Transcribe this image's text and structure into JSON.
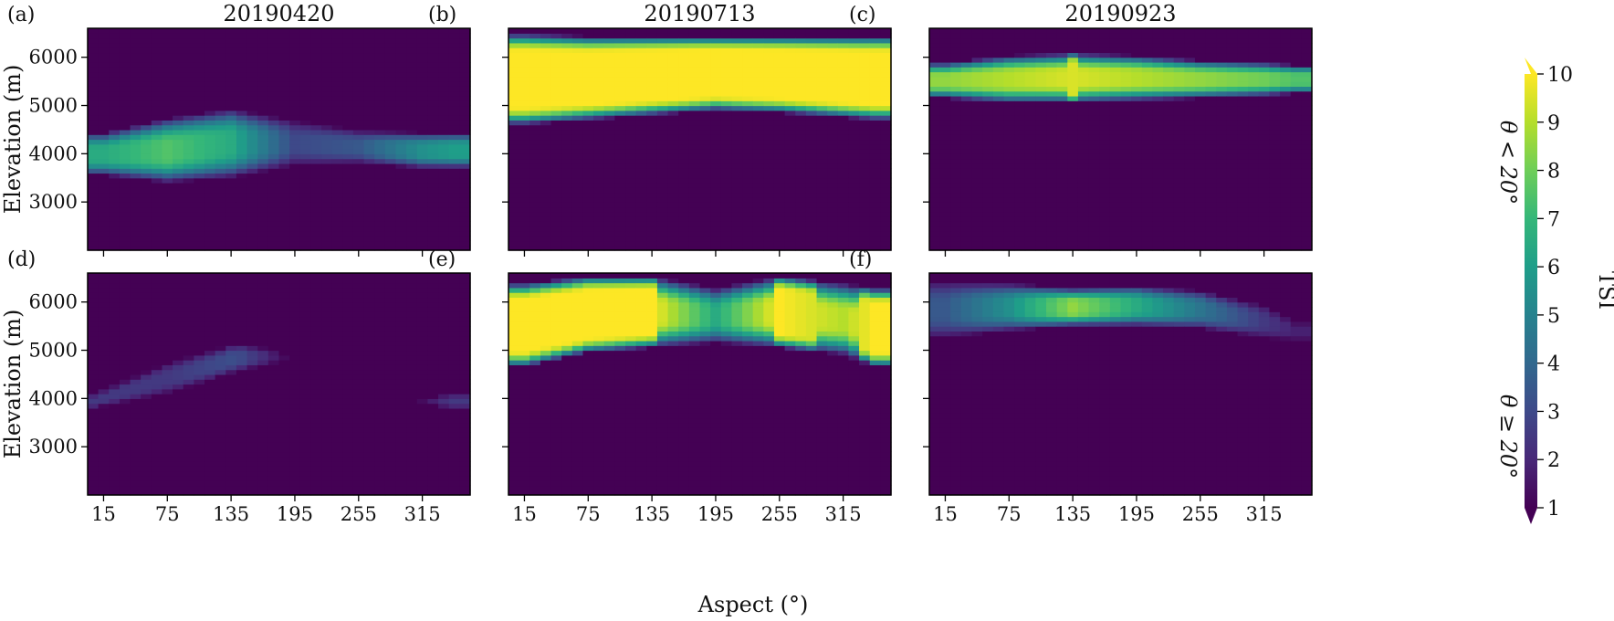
{
  "chart_data": {
    "type": "heatmap",
    "colormap": "viridis",
    "colorbar": {
      "label": "TSI",
      "min": 1,
      "max": 10,
      "ticks": [
        "1",
        "2",
        "3",
        "4",
        "5",
        "6",
        "7",
        "8",
        "9",
        "10"
      ],
      "extend": "both"
    },
    "xlabel": "Aspect (°)",
    "ylabel": "Elevation (m)",
    "xlim": [
      0,
      360
    ],
    "ylim": [
      2000,
      6600
    ],
    "xticks": [
      "15",
      "75",
      "135",
      "195",
      "255",
      "315"
    ],
    "xtick_values": [
      15,
      75,
      135,
      195,
      255,
      315
    ],
    "yticks": [
      "3000",
      "4000",
      "5000",
      "6000"
    ],
    "ytick_values": [
      3000,
      4000,
      5000,
      6000
    ],
    "columns": [
      "20190420",
      "20190713",
      "20190923"
    ],
    "rows": [
      "θ < 20°",
      "θ ≥ 20°"
    ],
    "panels": [
      {
        "label": "(a)",
        "date": "20190420",
        "slope": "θ < 20°",
        "bands": [
          {
            "aspect": 15,
            "lower": 3550,
            "upper": 4450,
            "peak": 6.5
          },
          {
            "aspect": 75,
            "lower": 3400,
            "upper": 4750,
            "peak": 7.5
          },
          {
            "aspect": 135,
            "lower": 3500,
            "upper": 4950,
            "peak": 6.5
          },
          {
            "aspect": 195,
            "lower": 3750,
            "upper": 4700,
            "peak": 3.0
          },
          {
            "aspect": 255,
            "lower": 3800,
            "upper": 4500,
            "peak": 3.5
          },
          {
            "aspect": 315,
            "lower": 3700,
            "upper": 4450,
            "peak": 5.5
          },
          {
            "aspect": 345,
            "lower": 3700,
            "upper": 4450,
            "peak": 6.0
          }
        ]
      },
      {
        "label": "(b)",
        "date": "20190713",
        "slope": "θ < 20°",
        "bands": [
          {
            "aspect": 15,
            "lower": 4600,
            "upper": 6500,
            "peak": 10
          },
          {
            "aspect": 75,
            "lower": 4700,
            "upper": 6450,
            "peak": 10
          },
          {
            "aspect": 135,
            "lower": 4800,
            "upper": 6450,
            "peak": 10
          },
          {
            "aspect": 195,
            "lower": 4900,
            "upper": 6450,
            "peak": 10
          },
          {
            "aspect": 255,
            "lower": 4850,
            "upper": 6450,
            "peak": 10
          },
          {
            "aspect": 315,
            "lower": 4750,
            "upper": 6450,
            "peak": 10
          },
          {
            "aspect": 345,
            "lower": 4700,
            "upper": 6450,
            "peak": 10
          }
        ]
      },
      {
        "label": "(c)",
        "date": "20190923",
        "slope": "θ < 20°",
        "bands": [
          {
            "aspect": 15,
            "lower": 5150,
            "upper": 5900,
            "peak": 8.5
          },
          {
            "aspect": 75,
            "lower": 5050,
            "upper": 6050,
            "peak": 9.0
          },
          {
            "aspect": 135,
            "lower": 5050,
            "upper": 6100,
            "peak": 9.5
          },
          {
            "aspect": 195,
            "lower": 5100,
            "upper": 6050,
            "peak": 9.0
          },
          {
            "aspect": 255,
            "lower": 5150,
            "upper": 5950,
            "peak": 8.5
          },
          {
            "aspect": 315,
            "lower": 5200,
            "upper": 5900,
            "peak": 8.0
          },
          {
            "aspect": 345,
            "lower": 5250,
            "upper": 5850,
            "peak": 7.5
          }
        ]
      },
      {
        "label": "(d)",
        "date": "20190420",
        "slope": "θ ≥ 20°",
        "bands": [
          {
            "aspect": 5,
            "lower": 3800,
            "upper": 4100,
            "peak": 2.5
          },
          {
            "aspect": 75,
            "lower": 4100,
            "upper": 4750,
            "peak": 2.5
          },
          {
            "aspect": 140,
            "lower": 4550,
            "upper": 5150,
            "peak": 3.2
          },
          {
            "aspect": 170,
            "lower": 4700,
            "upper": 5050,
            "peak": 2.0
          },
          {
            "aspect": 190,
            "lower": 4800,
            "upper": 4900,
            "peak": 1.0
          },
          {
            "aspect": 310,
            "lower": 3900,
            "upper": 4000,
            "peak": 1.0
          },
          {
            "aspect": 340,
            "lower": 3800,
            "upper": 4100,
            "peak": 2.5
          }
        ]
      },
      {
        "label": "(e)",
        "date": "20190713",
        "slope": "θ ≥ 20°",
        "bands": [
          {
            "aspect": 15,
            "lower": 4650,
            "upper": 6400,
            "peak": 10
          },
          {
            "aspect": 75,
            "lower": 4950,
            "upper": 6550,
            "peak": 10
          },
          {
            "aspect": 135,
            "lower": 5050,
            "upper": 6550,
            "peak": 10
          },
          {
            "aspect": 195,
            "lower": 5150,
            "upper": 6300,
            "peak": 6.5
          },
          {
            "aspect": 255,
            "lower": 5050,
            "upper": 6550,
            "peak": 10
          },
          {
            "aspect": 315,
            "lower": 4900,
            "upper": 6400,
            "peak": 9.0
          },
          {
            "aspect": 345,
            "lower": 4650,
            "upper": 6300,
            "peak": 10
          }
        ]
      },
      {
        "label": "(f)",
        "date": "20190923",
        "slope": "θ ≥ 20°",
        "bands": [
          {
            "aspect": 15,
            "lower": 5250,
            "upper": 6450,
            "peak": 3.5
          },
          {
            "aspect": 75,
            "lower": 5400,
            "upper": 6400,
            "peak": 5.5
          },
          {
            "aspect": 135,
            "lower": 5500,
            "upper": 6300,
            "peak": 8.5
          },
          {
            "aspect": 195,
            "lower": 5500,
            "upper": 6350,
            "peak": 6.5
          },
          {
            "aspect": 255,
            "lower": 5450,
            "upper": 6250,
            "peak": 4.5
          },
          {
            "aspect": 315,
            "lower": 5250,
            "upper": 5950,
            "peak": 2.5
          },
          {
            "aspect": 345,
            "lower": 5200,
            "upper": 5600,
            "peak": 1.8
          }
        ]
      }
    ]
  }
}
